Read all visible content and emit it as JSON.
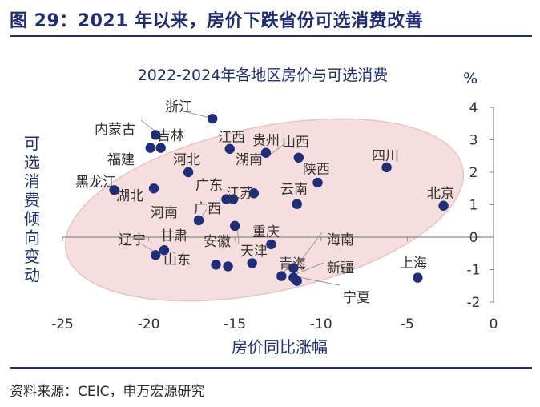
{
  "figure": {
    "title": "图 29：2021 年以来，房价下跌省份可选消费改善",
    "source": "资料来源：CEIC，申万宏源研究"
  },
  "colors": {
    "title": "#1f2e7a",
    "point": "#1f2e7a",
    "ellipse": "#f6dede",
    "axis": "#8a8a8a"
  },
  "chart_data": {
    "type": "scatter",
    "title": "2022-2024年各地区房价与可选消费",
    "xlabel": "房价同比涨幅",
    "ylabel": "可选消费倾向变动",
    "y_unit": "%",
    "xlim": [
      -25,
      0
    ],
    "ylim": [
      -2,
      4
    ],
    "xticks": [
      "-25",
      "-20",
      "-15",
      "-10",
      "-5",
      "0"
    ],
    "yticks": [
      "4",
      "3",
      "2",
      "1",
      "0",
      "-1",
      "-2"
    ],
    "grid": false,
    "points": [
      {
        "label": "浙江",
        "x": -16.3,
        "y": 3.65
      },
      {
        "label": "内蒙古",
        "x": -19.6,
        "y": 3.15
      },
      {
        "label": "吉林",
        "x": -19.9,
        "y": 2.75
      },
      {
        "label": "河北",
        "x": -19.3,
        "y": 2.75
      },
      {
        "label": "福建",
        "x": -17.7,
        "y": 2.0
      },
      {
        "label": "江西",
        "x": -15.3,
        "y": 2.72
      },
      {
        "label": "贵州",
        "x": -13.2,
        "y": 2.6
      },
      {
        "label": "湖南",
        "x": -11.3,
        "y": 2.45
      },
      {
        "label": "山西",
        "x": -13.9,
        "y": 1.35
      },
      {
        "label": "陕西",
        "x": -10.2,
        "y": 1.68
      },
      {
        "label": "四川",
        "x": -6.2,
        "y": 2.15
      },
      {
        "label": "北京",
        "x": -2.9,
        "y": 0.97
      },
      {
        "label": "黑龙江",
        "x": -22.0,
        "y": 1.45
      },
      {
        "label": "湖北",
        "x": -19.7,
        "y": 1.5
      },
      {
        "label": "广东",
        "x": -15.5,
        "y": 1.17
      },
      {
        "label": "江苏",
        "x": -15.1,
        "y": 1.17
      },
      {
        "label": "云南",
        "x": -11.4,
        "y": 1.02
      },
      {
        "label": "河南",
        "x": -17.1,
        "y": 0.52
      },
      {
        "label": "广西",
        "x": -15.0,
        "y": 0.35
      },
      {
        "label": "重庆",
        "x": -12.9,
        "y": -0.22
      },
      {
        "label": "辽宁",
        "x": -19.1,
        "y": -0.4
      },
      {
        "label": "甘肃",
        "x": -19.6,
        "y": -0.55
      },
      {
        "label": "安徽",
        "x": -16.1,
        "y": -0.85
      },
      {
        "label": "山东",
        "x": -15.4,
        "y": -0.9
      },
      {
        "label": "天津",
        "x": -14.0,
        "y": -0.8
      },
      {
        "label": "海南",
        "x": -11.6,
        "y": -0.95
      },
      {
        "label": "青海",
        "x": -12.3,
        "y": -1.2
      },
      {
        "label": "新疆",
        "x": -11.6,
        "y": -1.25
      },
      {
        "label": "宁夏",
        "x": -11.4,
        "y": -1.35
      },
      {
        "label": "上海",
        "x": -4.4,
        "y": -1.25
      }
    ]
  }
}
